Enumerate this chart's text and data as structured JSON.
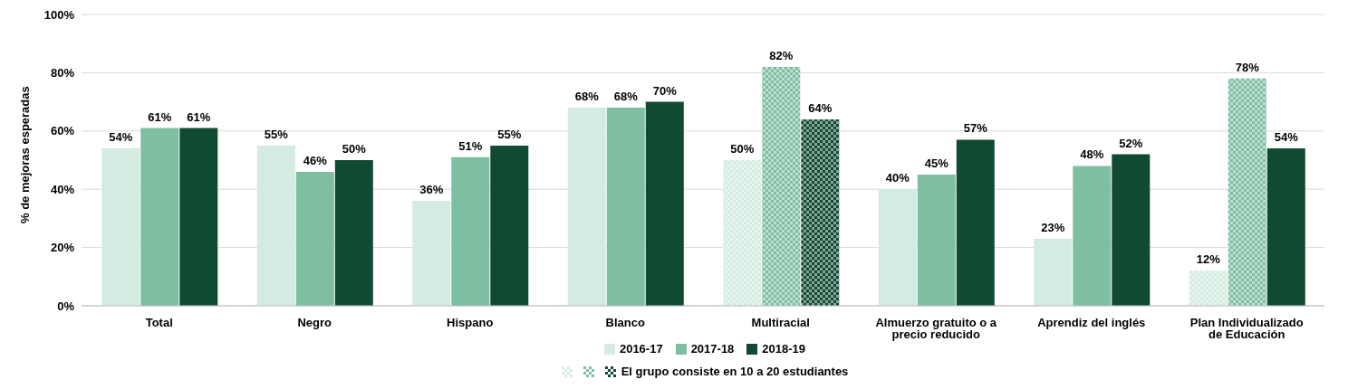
{
  "chart_data": {
    "type": "bar",
    "ylabel": "% de mejoras esperadas",
    "categories": [
      "Total",
      "Negro",
      "Hispano",
      "Blanco",
      "Multiracial",
      "Almuerzo gratuito o a precio reducido",
      "Aprendiz del inglés",
      "Plan Individualizado de Educación"
    ],
    "series": [
      {
        "name": "2016-17",
        "color": "#d3ebe1",
        "values": [
          54,
          55,
          36,
          68,
          50,
          40,
          23,
          12
        ],
        "value_labels": [
          "54%",
          "55%",
          "36%",
          "68%",
          "50%",
          "40%",
          "23%",
          "12%"
        ],
        "colors": [
          "#d3ebe1",
          "#d3ebe1",
          "#d3ebe1",
          "#d3ebe1",
          "#e9f5f0",
          "#d3ebe1",
          "#d3ebe1",
          "#e9f5f0"
        ]
      },
      {
        "name": "2017-18",
        "color": "#7dbfa0",
        "values": [
          61,
          46,
          51,
          68,
          82,
          45,
          48,
          78
        ],
        "value_labels": [
          "61%",
          "46%",
          "51%",
          "68%",
          "82%",
          "45%",
          "48%",
          "78%"
        ],
        "colors": [
          "#7dbfa0",
          "#7dbfa0",
          "#7dbfa0",
          "#7dbfa0",
          "#bedfd0",
          "#7dbfa0",
          "#7dbfa0",
          "#bedfd0"
        ]
      },
      {
        "name": "2018-19",
        "color": "#114a33",
        "values": [
          61,
          50,
          55,
          70,
          64,
          57,
          52,
          54
        ],
        "value_labels": [
          "61%",
          "50%",
          "55%",
          "70%",
          "64%",
          "57%",
          "52%",
          "54%"
        ],
        "colors": [
          "#114a33",
          "#114a33",
          "#114a33",
          "#114a33",
          "#88a599",
          "#114a33",
          "#114a33",
          "#114a33"
        ]
      }
    ],
    "ylim": [
      0,
      100
    ],
    "yticks": [
      {
        "value": 0,
        "label": "0%"
      },
      {
        "value": 20,
        "label": "20%"
      },
      {
        "value": 40,
        "label": "40%"
      },
      {
        "value": 60,
        "label": "60%"
      },
      {
        "value": 80,
        "label": "80%"
      },
      {
        "value": 100,
        "label": "100%"
      }
    ],
    "grid": "y",
    "legend": "bottom",
    "annotations": [
      "El grupo consiste en 10 a 20 estudiantes"
    ]
  }
}
